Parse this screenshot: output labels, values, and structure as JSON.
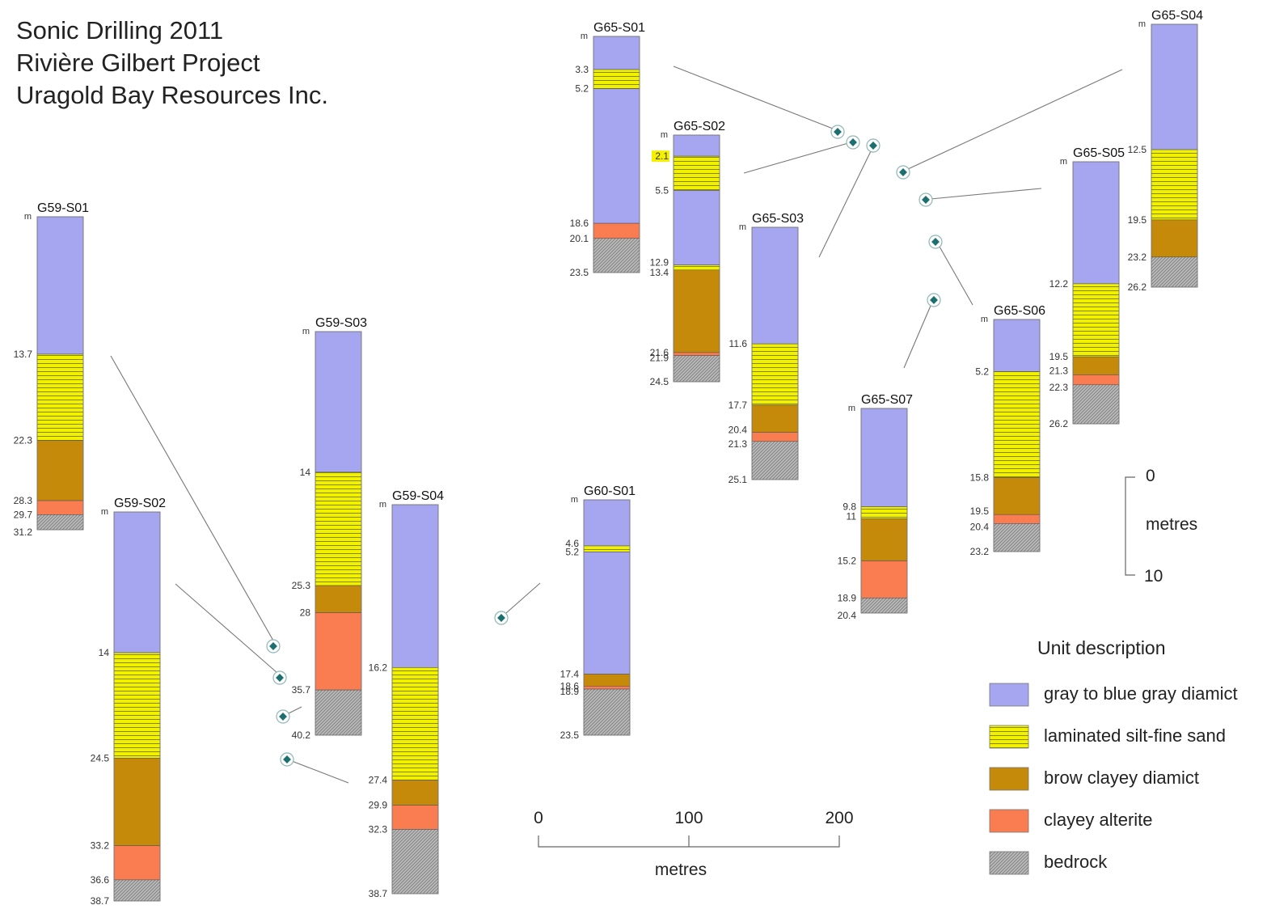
{
  "title_lines": [
    "Sonic Drilling 2011",
    "Rivière Gilbert Project",
    "Uragold Bay Resources Inc."
  ],
  "unit_label": "m",
  "colors": {
    "diamict_gray": "#a5a5f0",
    "silt_sand": "#f2f200",
    "silt_sand_lines": "#7a7a00",
    "clayey_diamict": "#c58a0a",
    "alterite": "#fa7d52",
    "bedrock": "#b9b9b9",
    "bedrock_hatch": "#7a7a7a",
    "marker": "#1b6f6f",
    "leader": "#777777",
    "highlight": "#f5f000"
  },
  "legend": {
    "title": "Unit description",
    "items": [
      {
        "key": "diamict_gray",
        "label": "gray to blue gray diamict"
      },
      {
        "key": "silt_sand",
        "label": "laminated silt-fine sand"
      },
      {
        "key": "clayey_diamict",
        "label": "brow clayey diamict"
      },
      {
        "key": "alterite",
        "label": "clayey alterite"
      },
      {
        "key": "bedrock",
        "label": "bedrock"
      }
    ]
  },
  "horizontal_scale": {
    "ticks": [
      "0",
      "100",
      "200"
    ],
    "unit": "metres"
  },
  "vertical_scale": {
    "ticks": [
      "0",
      "10"
    ],
    "unit": "metres"
  },
  "holes": [
    {
      "name": "G59-S01",
      "units": [
        {
          "key": "diamict_gray",
          "from": 0,
          "to": 13.7
        },
        {
          "key": "silt_sand",
          "from": 13.7,
          "to": 22.3
        },
        {
          "key": "clayey_diamict",
          "from": 22.3,
          "to": 28.3
        },
        {
          "key": "alterite",
          "from": 28.3,
          "to": 29.7
        },
        {
          "key": "bedrock",
          "from": 29.7,
          "to": 31.2
        }
      ],
      "depth_labels": [
        "13.7",
        "22.3",
        "28.3",
        "29.7",
        "31.2"
      ]
    },
    {
      "name": "G59-S02",
      "units": [
        {
          "key": "diamict_gray",
          "from": 0,
          "to": 14
        },
        {
          "key": "silt_sand",
          "from": 14,
          "to": 24.5
        },
        {
          "key": "clayey_diamict",
          "from": 24.5,
          "to": 33.2
        },
        {
          "key": "alterite",
          "from": 33.2,
          "to": 36.6
        },
        {
          "key": "bedrock",
          "from": 36.6,
          "to": 38.7
        }
      ],
      "depth_labels": [
        "14",
        "24.5",
        "33.2",
        "36.6",
        "38.7"
      ]
    },
    {
      "name": "G59-S03",
      "units": [
        {
          "key": "diamict_gray",
          "from": 0,
          "to": 14
        },
        {
          "key": "silt_sand",
          "from": 14,
          "to": 25.3
        },
        {
          "key": "clayey_diamict",
          "from": 25.3,
          "to": 28
        },
        {
          "key": "alterite",
          "from": 28,
          "to": 35.7
        },
        {
          "key": "bedrock",
          "from": 35.7,
          "to": 40.2
        }
      ],
      "depth_labels": [
        "14",
        "25.3",
        "28",
        "35.7",
        "40.2"
      ]
    },
    {
      "name": "G59-S04",
      "units": [
        {
          "key": "diamict_gray",
          "from": 0,
          "to": 16.2
        },
        {
          "key": "silt_sand",
          "from": 16.2,
          "to": 27.4
        },
        {
          "key": "clayey_diamict",
          "from": 27.4,
          "to": 29.9
        },
        {
          "key": "alterite",
          "from": 29.9,
          "to": 32.3
        },
        {
          "key": "bedrock",
          "from": 32.3,
          "to": 38.7
        }
      ],
      "depth_labels": [
        "16.2",
        "27.4",
        "29.9",
        "32.3",
        "38.7"
      ]
    },
    {
      "name": "G60-S01",
      "units": [
        {
          "key": "diamict_gray",
          "from": 0,
          "to": 4.6
        },
        {
          "key": "silt_sand",
          "from": 4.6,
          "to": 5.2
        },
        {
          "key": "diamict_gray",
          "from": 5.2,
          "to": 17.4
        },
        {
          "key": "clayey_diamict",
          "from": 17.4,
          "to": 18.6
        },
        {
          "key": "alterite",
          "from": 18.6,
          "to": 18.9
        },
        {
          "key": "bedrock",
          "from": 18.9,
          "to": 23.5
        }
      ],
      "depth_labels": [
        "4.6",
        "5.2",
        "17.4",
        "18.6",
        "18.9",
        "23.5"
      ]
    },
    {
      "name": "G65-S01",
      "units": [
        {
          "key": "diamict_gray",
          "from": 0,
          "to": 3.3
        },
        {
          "key": "silt_sand",
          "from": 3.3,
          "to": 5.2
        },
        {
          "key": "diamict_gray",
          "from": 5.2,
          "to": 18.6
        },
        {
          "key": "alterite",
          "from": 18.6,
          "to": 20.1
        },
        {
          "key": "bedrock",
          "from": 20.1,
          "to": 23.5
        }
      ],
      "depth_labels": [
        "3.3",
        "5.2",
        "18.6",
        "20.1",
        "23.5"
      ]
    },
    {
      "name": "G65-S02",
      "units": [
        {
          "key": "diamict_gray",
          "from": 0,
          "to": 2.1
        },
        {
          "key": "silt_sand",
          "from": 2.1,
          "to": 5.5
        },
        {
          "key": "diamict_gray",
          "from": 5.5,
          "to": 12.9
        },
        {
          "key": "silt_sand",
          "from": 12.9,
          "to": 13.4
        },
        {
          "key": "clayey_diamict",
          "from": 13.4,
          "to": 21.6
        },
        {
          "key": "alterite",
          "from": 21.6,
          "to": 21.9
        },
        {
          "key": "bedrock",
          "from": 21.9,
          "to": 24.5
        }
      ],
      "depth_labels": [
        "2.1",
        "5.5",
        "12.9",
        "13.4",
        "21.6",
        "21.9",
        "24.5"
      ],
      "highlighted_label": "2.1"
    },
    {
      "name": "G65-S03",
      "units": [
        {
          "key": "diamict_gray",
          "from": 0,
          "to": 11.6
        },
        {
          "key": "silt_sand",
          "from": 11.6,
          "to": 17.7
        },
        {
          "key": "clayey_diamict",
          "from": 17.7,
          "to": 20.4
        },
        {
          "key": "alterite",
          "from": 20.4,
          "to": 21.3
        },
        {
          "key": "bedrock",
          "from": 21.3,
          "to": 25.1
        }
      ],
      "depth_labels": [
        "11.6",
        "17.7",
        "20.4",
        "21.3",
        "25.1"
      ]
    },
    {
      "name": "G65-S04",
      "units": [
        {
          "key": "diamict_gray",
          "from": 0,
          "to": 12.5
        },
        {
          "key": "silt_sand",
          "from": 12.5,
          "to": 19.5
        },
        {
          "key": "clayey_diamict",
          "from": 19.5,
          "to": 23.2
        },
        {
          "key": "bedrock",
          "from": 23.2,
          "to": 26.2
        }
      ],
      "depth_labels": [
        "12.5",
        "19.5",
        "23.2",
        "26.2"
      ]
    },
    {
      "name": "G65-S05",
      "units": [
        {
          "key": "diamict_gray",
          "from": 0,
          "to": 12.2
        },
        {
          "key": "silt_sand",
          "from": 12.2,
          "to": 19.5
        },
        {
          "key": "clayey_diamict",
          "from": 19.5,
          "to": 21.3
        },
        {
          "key": "alterite",
          "from": 21.3,
          "to": 22.3
        },
        {
          "key": "bedrock",
          "from": 22.3,
          "to": 26.2
        }
      ],
      "depth_labels": [
        "12.2",
        "19.5",
        "21.3",
        "22.3",
        "26.2"
      ]
    },
    {
      "name": "G65-S06",
      "units": [
        {
          "key": "diamict_gray",
          "from": 0,
          "to": 5.2
        },
        {
          "key": "silt_sand",
          "from": 5.2,
          "to": 15.8
        },
        {
          "key": "clayey_diamict",
          "from": 15.8,
          "to": 19.5
        },
        {
          "key": "alterite",
          "from": 19.5,
          "to": 20.4
        },
        {
          "key": "bedrock",
          "from": 20.4,
          "to": 23.2
        }
      ],
      "depth_labels": [
        "5.2",
        "15.8",
        "19.5",
        "20.4",
        "23.2"
      ]
    },
    {
      "name": "G65-S07",
      "units": [
        {
          "key": "diamict_gray",
          "from": 0,
          "to": 9.8
        },
        {
          "key": "silt_sand",
          "from": 9.8,
          "to": 11
        },
        {
          "key": "clayey_diamict",
          "from": 11,
          "to": 15.2
        },
        {
          "key": "alterite",
          "from": 15.2,
          "to": 18.9
        },
        {
          "key": "bedrock",
          "from": 18.9,
          "to": 20.4
        }
      ],
      "depth_labels": [
        "9.8",
        "11",
        "15.2",
        "18.9",
        "20.4"
      ]
    }
  ]
}
